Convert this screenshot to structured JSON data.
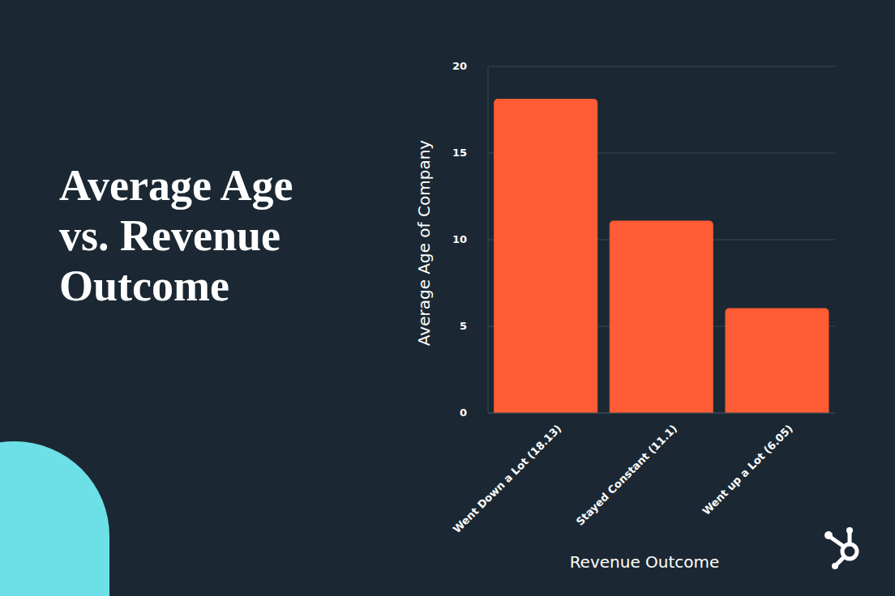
{
  "chart_data": {
    "type": "bar",
    "title": "Average Age vs. Revenue Outcome",
    "categories": [
      "Went Down a Lot (18.13)",
      "Stayed Constant (11.1)",
      "Went up a Lot (6.05)"
    ],
    "values": [
      18.13,
      11.1,
      6.05
    ],
    "color": "#ff5c35",
    "x_label": "Revenue Outcome",
    "y_label": "Average Age of Company",
    "ylim": [
      0,
      20
    ],
    "yticks": [
      0,
      5,
      10,
      15,
      20
    ],
    "grid": true
  }
}
